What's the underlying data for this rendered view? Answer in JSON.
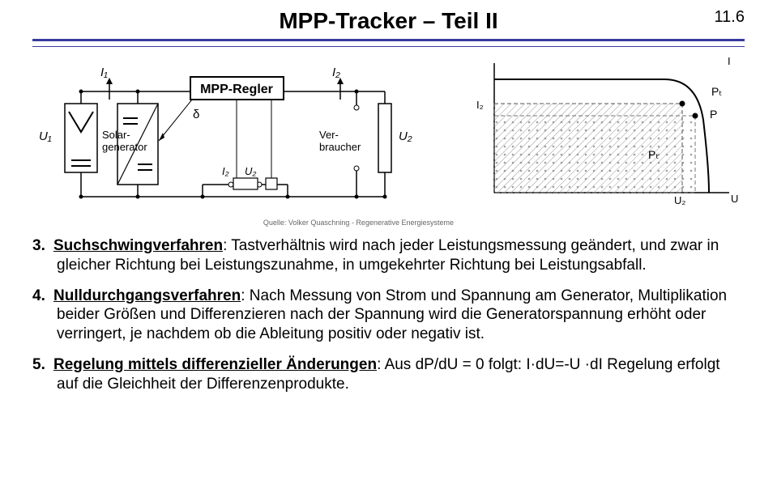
{
  "header": {
    "title": "MPP-Tracker – Teil II",
    "page_number": "11.6",
    "rule_color_top": "#3a3aa0",
    "rule_color_bottom": "#3a3aa0"
  },
  "figure_left": {
    "mpp_regler_label": "MPP-Regler",
    "i1": "I₁",
    "u1": "U₁",
    "delta": "δ",
    "i2_small": "I₂",
    "u2_small": "U₂",
    "i2": "I₂",
    "u2": "U₂",
    "solar_label_1": "Solar-",
    "solar_label_2": "generator",
    "verbr_label_1": "Ver-",
    "verbr_label_2": "braucher",
    "citation": "Quelle: Volker Quaschning - Regenerative Energiesysteme"
  },
  "figure_right": {
    "axis_i": "I",
    "axis_u": "U",
    "i2_label": "I₂",
    "u2_label": "U₂",
    "p_label": "P",
    "pt_label_top": "Pₜ",
    "pt_label_bottom": "Pₜ"
  },
  "body": {
    "items": [
      {
        "num": "3.",
        "term": "Suchschwingverfahren",
        "text": ": Tastverhältnis wird nach jeder Leistungsmessung geändert, und zwar in gleicher Richtung bei Leistungszunahme, in umgekehrter Richtung bei Leistungsabfall."
      },
      {
        "num": "4.",
        "term": "Nulldurchgangsverfahren",
        "text": ": Nach Messung von Strom und Spannung am Generator, Multiplikation beider Größen und Differenzieren nach der Spannung wird die Generatorspannung erhöht oder verringert, je nachdem ob die Ableitung positiv oder negativ ist."
      },
      {
        "num": "5.",
        "term": "Regelung mittels differenzieller Änderungen",
        "text": ": Aus dP/dU = 0 folgt:  I·dU=-U ·dI Regelung erfolgt auf die Gleichheit der Differenzenprodukte."
      }
    ]
  }
}
